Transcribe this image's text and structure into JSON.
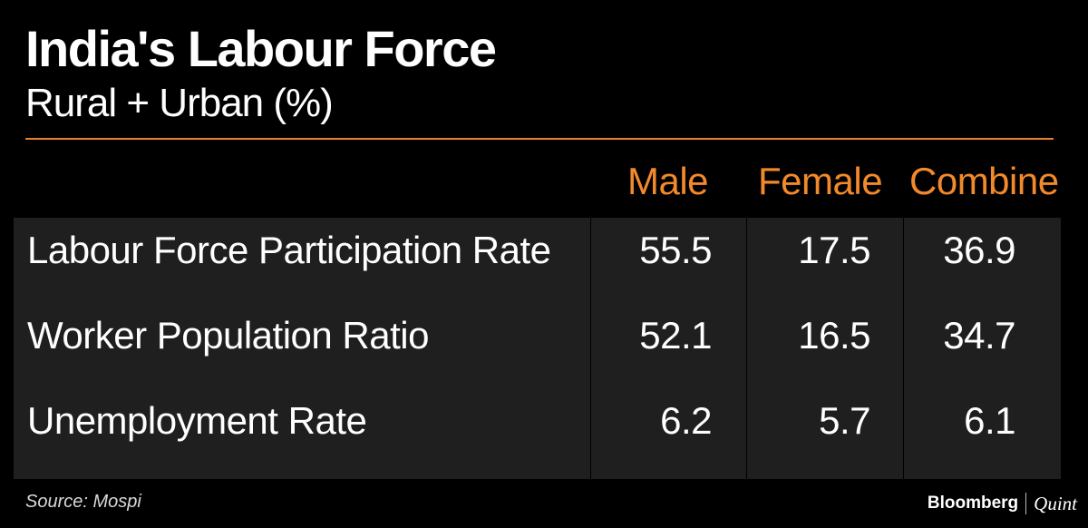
{
  "header": {
    "title": "India's Labour Force",
    "subtitle": "Rural + Urban (%)"
  },
  "table": {
    "columns": [
      "Male",
      "Female",
      "Combine"
    ],
    "rows": [
      {
        "label": "Labour Force Participation Rate",
        "values": [
          "55.5",
          "17.5",
          "36.9"
        ]
      },
      {
        "label": "Worker Population Ratio",
        "values": [
          "52.1",
          "16.5",
          "34.7"
        ]
      },
      {
        "label": "Unemployment Rate",
        "values": [
          "6.2",
          "5.7",
          "6.1"
        ]
      }
    ]
  },
  "footer": {
    "source": "Source: Mospi",
    "brand_left": "Bloomberg",
    "brand_right": "Quint"
  },
  "colors": {
    "background": "#000000",
    "accent": "#f28a2b",
    "table_background": "#1f1f1f"
  },
  "chart_data": {
    "type": "table",
    "title": "India's Labour Force",
    "subtitle": "Rural + Urban (%)",
    "columns": [
      "Male",
      "Female",
      "Combine"
    ],
    "rows": [
      {
        "label": "Labour Force Participation Rate",
        "values": [
          55.5,
          17.5,
          36.9
        ]
      },
      {
        "label": "Worker Population Ratio",
        "values": [
          52.1,
          16.5,
          34.7
        ]
      },
      {
        "label": "Unemployment Rate",
        "values": [
          6.2,
          5.7,
          6.1
        ]
      }
    ]
  }
}
